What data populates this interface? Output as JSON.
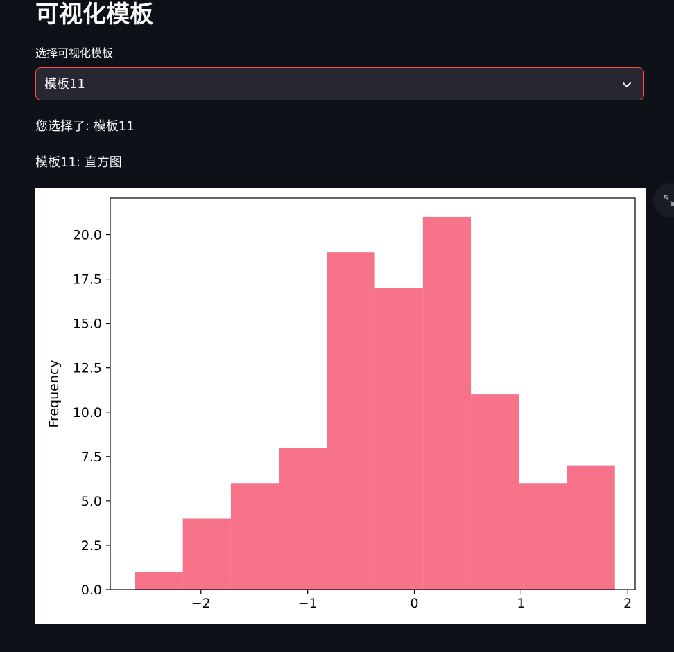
{
  "header": {
    "title": "可视化模板"
  },
  "selector": {
    "label": "选择可视化模板",
    "value": "模板11"
  },
  "messages": {
    "selected": "您选择了: 模板11",
    "chart_caption": "模板11: 直方图"
  },
  "icons": {
    "dropdown": "chevron-down-icon",
    "expand": "expand-icon"
  },
  "colors": {
    "background": "#0e1117",
    "select_bg": "#262730",
    "select_border": "#ff4b4b",
    "bar": "#f6738a"
  },
  "chart_data": {
    "type": "bar",
    "ylabel": "Frequency",
    "xlabel": "",
    "bin_edges": [
      -2.62,
      -2.17,
      -1.72,
      -1.27,
      -0.82,
      -0.37,
      0.08,
      0.53,
      0.98,
      1.43,
      1.88
    ],
    "values": [
      1,
      4,
      6,
      8,
      19,
      17,
      21,
      11,
      6,
      7
    ],
    "xlim": [
      -2.85,
      2.07
    ],
    "ylim": [
      0,
      22.05
    ],
    "xticks": [
      -2,
      -1,
      0,
      1,
      2
    ],
    "xtick_labels": [
      "−2",
      "−1",
      "0",
      "1",
      "2"
    ],
    "yticks": [
      0,
      2.5,
      5,
      7.5,
      10,
      12.5,
      15,
      17.5,
      20
    ],
    "ytick_labels": [
      "0.0",
      "2.5",
      "5.0",
      "7.5",
      "10.0",
      "12.5",
      "15.0",
      "17.5",
      "20.0"
    ],
    "grid": false
  }
}
